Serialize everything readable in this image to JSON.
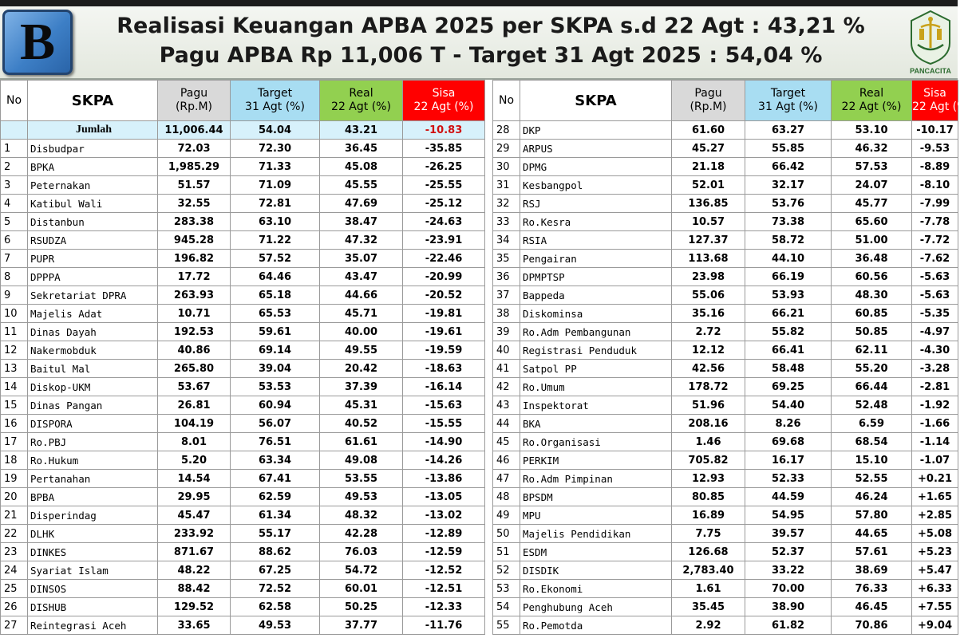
{
  "header": {
    "logo_letter": "B",
    "title_line1": "Realisasi Keuangan APBA 2025 per SKPA s.d  22 Agt : 43,21 %",
    "title_line2": "Pagu APBA Rp 11,006 T  -  Target 31 Agt 2025 : 54,04 %",
    "emblem_text": "PANCACITA",
    "emblem_icon": "aceh-pancacita-emblem-icon"
  },
  "columns": {
    "no": "No",
    "skpa": "SKPA",
    "pagu": [
      "Pagu",
      "(Rp.M)"
    ],
    "target": [
      "Target",
      "31 Agt (%)"
    ],
    "real": [
      "Real",
      "22 Agt (%)"
    ],
    "sisa": [
      "Sisa",
      "22 Agt (%)"
    ]
  },
  "colors": {
    "pagu_header": "#d9d9d9",
    "target_header": "#a8ddf2",
    "real_header": "#92d050",
    "sisa_header": "#ff0000",
    "total_row": "#d7f1fb",
    "total_sisa_text": "#d01010"
  },
  "left_table": {
    "total": {
      "label": "Jumlah",
      "pagu": "11,006.44",
      "target": "54.04",
      "real": "43.21",
      "sisa": "-10.83"
    },
    "rows": [
      {
        "no": "1",
        "skpa": "Disbudpar",
        "pagu": "72.03",
        "target": "72.30",
        "real": "36.45",
        "sisa": "-35.85"
      },
      {
        "no": "2",
        "skpa": "BPKA",
        "pagu": "1,985.29",
        "target": "71.33",
        "real": "45.08",
        "sisa": "-26.25"
      },
      {
        "no": "3",
        "skpa": "Peternakan",
        "pagu": "51.57",
        "target": "71.09",
        "real": "45.55",
        "sisa": "-25.55"
      },
      {
        "no": "4",
        "skpa": "Katibul Wali",
        "pagu": "32.55",
        "target": "72.81",
        "real": "47.69",
        "sisa": "-25.12"
      },
      {
        "no": "5",
        "skpa": "Distanbun",
        "pagu": "283.38",
        "target": "63.10",
        "real": "38.47",
        "sisa": "-24.63"
      },
      {
        "no": "6",
        "skpa": "RSUDZA",
        "pagu": "945.28",
        "target": "71.22",
        "real": "47.32",
        "sisa": "-23.91"
      },
      {
        "no": "7",
        "skpa": "PUPR",
        "pagu": "196.82",
        "target": "57.52",
        "real": "35.07",
        "sisa": "-22.46"
      },
      {
        "no": "8",
        "skpa": "DPPPA",
        "pagu": "17.72",
        "target": "64.46",
        "real": "43.47",
        "sisa": "-20.99"
      },
      {
        "no": "9",
        "skpa": "Sekretariat DPRA",
        "pagu": "263.93",
        "target": "65.18",
        "real": "44.66",
        "sisa": "-20.52"
      },
      {
        "no": "10",
        "skpa": "Majelis Adat",
        "pagu": "10.71",
        "target": "65.53",
        "real": "45.71",
        "sisa": "-19.81"
      },
      {
        "no": "11",
        "skpa": "Dinas Dayah",
        "pagu": "192.53",
        "target": "59.61",
        "real": "40.00",
        "sisa": "-19.61"
      },
      {
        "no": "12",
        "skpa": "Nakermobduk",
        "pagu": "40.86",
        "target": "69.14",
        "real": "49.55",
        "sisa": "-19.59"
      },
      {
        "no": "13",
        "skpa": "Baitul Mal",
        "pagu": "265.80",
        "target": "39.04",
        "real": "20.42",
        "sisa": "-18.63"
      },
      {
        "no": "14",
        "skpa": "Diskop-UKM",
        "pagu": "53.67",
        "target": "53.53",
        "real": "37.39",
        "sisa": "-16.14"
      },
      {
        "no": "15",
        "skpa": "Dinas Pangan",
        "pagu": "26.81",
        "target": "60.94",
        "real": "45.31",
        "sisa": "-15.63"
      },
      {
        "no": "16",
        "skpa": "DISPORA",
        "pagu": "104.19",
        "target": "56.07",
        "real": "40.52",
        "sisa": "-15.55"
      },
      {
        "no": "17",
        "skpa": "Ro.PBJ",
        "pagu": "8.01",
        "target": "76.51",
        "real": "61.61",
        "sisa": "-14.90"
      },
      {
        "no": "18",
        "skpa": "Ro.Hukum",
        "pagu": "5.20",
        "target": "63.34",
        "real": "49.08",
        "sisa": "-14.26"
      },
      {
        "no": "19",
        "skpa": "Pertanahan",
        "pagu": "14.54",
        "target": "67.41",
        "real": "53.55",
        "sisa": "-13.86"
      },
      {
        "no": "20",
        "skpa": "BPBA",
        "pagu": "29.95",
        "target": "62.59",
        "real": "49.53",
        "sisa": "-13.05"
      },
      {
        "no": "21",
        "skpa": "Disperindag",
        "pagu": "45.47",
        "target": "61.34",
        "real": "48.32",
        "sisa": "-13.02"
      },
      {
        "no": "22",
        "skpa": "DLHK",
        "pagu": "233.92",
        "target": "55.17",
        "real": "42.28",
        "sisa": "-12.89"
      },
      {
        "no": "23",
        "skpa": "DINKES",
        "pagu": "871.67",
        "target": "88.62",
        "real": "76.03",
        "sisa": "-12.59"
      },
      {
        "no": "24",
        "skpa": "Syariat Islam",
        "pagu": "48.22",
        "target": "67.25",
        "real": "54.72",
        "sisa": "-12.52"
      },
      {
        "no": "25",
        "skpa": "DINSOS",
        "pagu": "88.42",
        "target": "72.52",
        "real": "60.01",
        "sisa": "-12.51"
      },
      {
        "no": "26",
        "skpa": "DISHUB",
        "pagu": "129.52",
        "target": "62.58",
        "real": "50.25",
        "sisa": "-12.33"
      },
      {
        "no": "27",
        "skpa": "Reintegrasi Aceh",
        "pagu": "33.65",
        "target": "49.53",
        "real": "37.77",
        "sisa": "-11.76"
      }
    ]
  },
  "right_table": {
    "rows": [
      {
        "no": "28",
        "skpa": "DKP",
        "pagu": "61.60",
        "target": "63.27",
        "real": "53.10",
        "sisa": "-10.17"
      },
      {
        "no": "29",
        "skpa": "ARPUS",
        "pagu": "45.27",
        "target": "55.85",
        "real": "46.32",
        "sisa": "-9.53"
      },
      {
        "no": "30",
        "skpa": "DPMG",
        "pagu": "21.18",
        "target": "66.42",
        "real": "57.53",
        "sisa": "-8.89"
      },
      {
        "no": "31",
        "skpa": "Kesbangpol",
        "pagu": "52.01",
        "target": "32.17",
        "real": "24.07",
        "sisa": "-8.10"
      },
      {
        "no": "32",
        "skpa": "RSJ",
        "pagu": "136.85",
        "target": "53.76",
        "real": "45.77",
        "sisa": "-7.99"
      },
      {
        "no": "33",
        "skpa": "Ro.Kesra",
        "pagu": "10.57",
        "target": "73.38",
        "real": "65.60",
        "sisa": "-7.78"
      },
      {
        "no": "34",
        "skpa": "RSIA",
        "pagu": "127.37",
        "target": "58.72",
        "real": "51.00",
        "sisa": "-7.72"
      },
      {
        "no": "35",
        "skpa": "Pengairan",
        "pagu": "113.68",
        "target": "44.10",
        "real": "36.48",
        "sisa": "-7.62"
      },
      {
        "no": "36",
        "skpa": "DPMPTSP",
        "pagu": "23.98",
        "target": "66.19",
        "real": "60.56",
        "sisa": "-5.63"
      },
      {
        "no": "37",
        "skpa": "Bappeda",
        "pagu": "55.06",
        "target": "53.93",
        "real": "48.30",
        "sisa": "-5.63"
      },
      {
        "no": "38",
        "skpa": "Diskominsa",
        "pagu": "35.16",
        "target": "66.21",
        "real": "60.85",
        "sisa": "-5.35"
      },
      {
        "no": "39",
        "skpa": "Ro.Adm Pembangunan",
        "pagu": "2.72",
        "target": "55.82",
        "real": "50.85",
        "sisa": "-4.97"
      },
      {
        "no": "40",
        "skpa": "Registrasi Penduduk",
        "pagu": "12.12",
        "target": "66.41",
        "real": "62.11",
        "sisa": "-4.30"
      },
      {
        "no": "41",
        "skpa": "Satpol PP",
        "pagu": "42.56",
        "target": "58.48",
        "real": "55.20",
        "sisa": "-3.28"
      },
      {
        "no": "42",
        "skpa": "Ro.Umum",
        "pagu": "178.72",
        "target": "69.25",
        "real": "66.44",
        "sisa": "-2.81"
      },
      {
        "no": "43",
        "skpa": "Inspektorat",
        "pagu": "51.96",
        "target": "54.40",
        "real": "52.48",
        "sisa": "-1.92"
      },
      {
        "no": "44",
        "skpa": "BKA",
        "pagu": "208.16",
        "target": "8.26",
        "real": "6.59",
        "sisa": "-1.66"
      },
      {
        "no": "45",
        "skpa": "Ro.Organisasi",
        "pagu": "1.46",
        "target": "69.68",
        "real": "68.54",
        "sisa": "-1.14"
      },
      {
        "no": "46",
        "skpa": "PERKIM",
        "pagu": "705.82",
        "target": "16.17",
        "real": "15.10",
        "sisa": "-1.07"
      },
      {
        "no": "47",
        "skpa": "Ro.Adm Pimpinan",
        "pagu": "12.93",
        "target": "52.33",
        "real": "52.55",
        "sisa": "+0.21"
      },
      {
        "no": "48",
        "skpa": "BPSDM",
        "pagu": "80.85",
        "target": "44.59",
        "real": "46.24",
        "sisa": "+1.65"
      },
      {
        "no": "49",
        "skpa": "MPU",
        "pagu": "16.89",
        "target": "54.95",
        "real": "57.80",
        "sisa": "+2.85"
      },
      {
        "no": "50",
        "skpa": "Majelis Pendidikan",
        "pagu": "7.75",
        "target": "39.57",
        "real": "44.65",
        "sisa": "+5.08"
      },
      {
        "no": "51",
        "skpa": "ESDM",
        "pagu": "126.68",
        "target": "52.37",
        "real": "57.61",
        "sisa": "+5.23"
      },
      {
        "no": "52",
        "skpa": "DISDIK",
        "pagu": "2,783.40",
        "target": "33.22",
        "real": "38.69",
        "sisa": "+5.47"
      },
      {
        "no": "53",
        "skpa": "Ro.Ekonomi",
        "pagu": "1.61",
        "target": "70.00",
        "real": "76.33",
        "sisa": "+6.33"
      },
      {
        "no": "54",
        "skpa": "Penghubung Aceh",
        "pagu": "35.45",
        "target": "38.90",
        "real": "46.45",
        "sisa": "+7.55"
      },
      {
        "no": "55",
        "skpa": "Ro.Pemotda",
        "pagu": "2.92",
        "target": "61.82",
        "real": "70.86",
        "sisa": "+9.04"
      }
    ]
  }
}
